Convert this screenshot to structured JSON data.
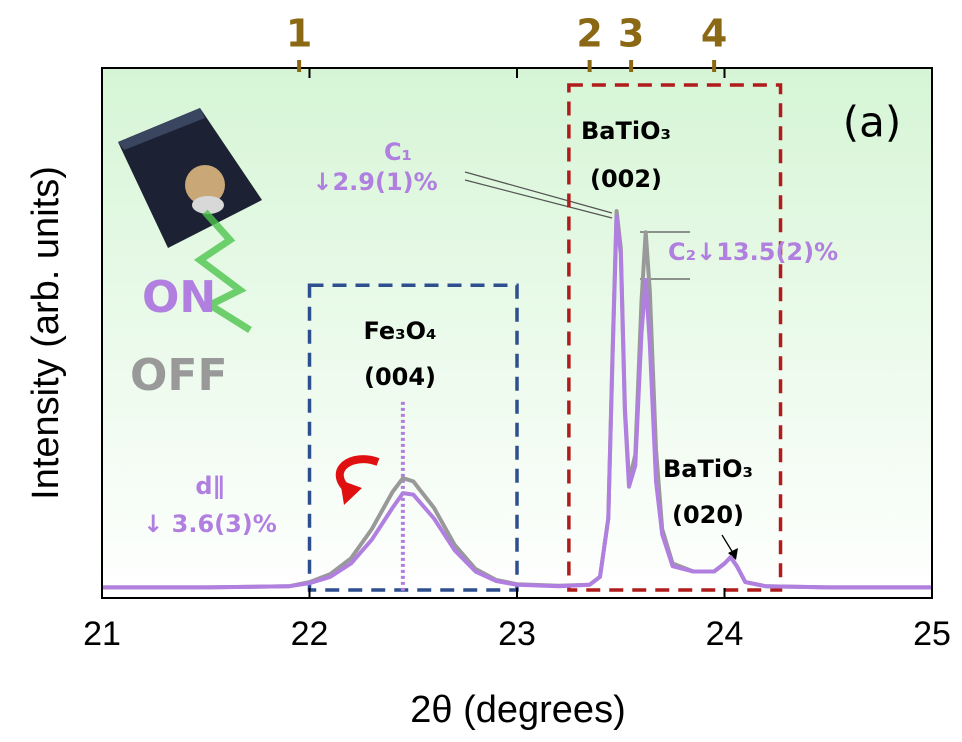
{
  "chart_data": {
    "type": "line",
    "x_label": "2θ (degrees)",
    "y_label": "Intensity (arb. units)",
    "xlim": [
      21,
      25
    ],
    "xticks": [
      21,
      22,
      23,
      24,
      25
    ],
    "ylim": [
      0,
      100
    ],
    "x": [
      21,
      21.5,
      21.9,
      22.0,
      22.1,
      22.2,
      22.3,
      22.4,
      22.45,
      22.5,
      22.6,
      22.7,
      22.8,
      22.9,
      23.0,
      23.2,
      23.35,
      23.4,
      23.44,
      23.46,
      23.48,
      23.5,
      23.52,
      23.54,
      23.57,
      23.6,
      23.62,
      23.64,
      23.67,
      23.7,
      23.75,
      23.85,
      23.95,
      24.0,
      24.03,
      24.06,
      24.1,
      24.2,
      24.5,
      25
    ],
    "series": [
      {
        "name": "OFF",
        "color": "#999999",
        "values": [
          2,
          2,
          2.2,
          3,
          4.5,
          7.5,
          13,
          20,
          22.6,
          22,
          17,
          10,
          5.5,
          3.4,
          2.6,
          2.3,
          2.5,
          4,
          15,
          46,
          73,
          66,
          36,
          22,
          27,
          56,
          69,
          58,
          28,
          13,
          6.5,
          5,
          5,
          6.5,
          7.7,
          6,
          3,
          2.2,
          2,
          2
        ]
      },
      {
        "name": "ON",
        "color": "#b07fe0",
        "values": [
          2,
          2,
          2.2,
          2.8,
          4,
          6.5,
          11,
          17,
          19.8,
          19.5,
          15,
          9,
          5,
          3.2,
          2.5,
          2.2,
          2.5,
          4,
          15,
          45,
          72,
          65,
          35,
          21,
          25,
          50,
          60,
          48,
          22,
          12,
          6,
          5,
          5,
          6.5,
          7.7,
          6,
          3,
          2.2,
          2,
          2
        ]
      }
    ],
    "top_markers": [
      {
        "label": "1",
        "x": 21.95
      },
      {
        "label": "2",
        "x": 23.35
      },
      {
        "label": "3",
        "x": 23.55
      },
      {
        "label": "4",
        "x": 23.95
      }
    ],
    "regions": [
      {
        "xmin": 22.0,
        "xmax": 23.0,
        "ymin": 1.5,
        "ymax": 59,
        "color": "#2e4f8f"
      },
      {
        "xmin": 23.25,
        "xmax": 24.27,
        "ymin": 1.5,
        "ymax": 96.8,
        "color": "#b01c1c"
      }
    ],
    "vline": {
      "x": 22.45,
      "ymax": 37
    },
    "annotations": [
      "(a)",
      "C₁",
      "↓2.9(1)%",
      "C₂↓13.5(2)%",
      "BaTiO₃",
      "(002)",
      "Fe₃O₄",
      "(004)",
      "BaTiO₃",
      "(020)",
      "d∥",
      "↓ 3.6(3)%"
    ]
  }
}
